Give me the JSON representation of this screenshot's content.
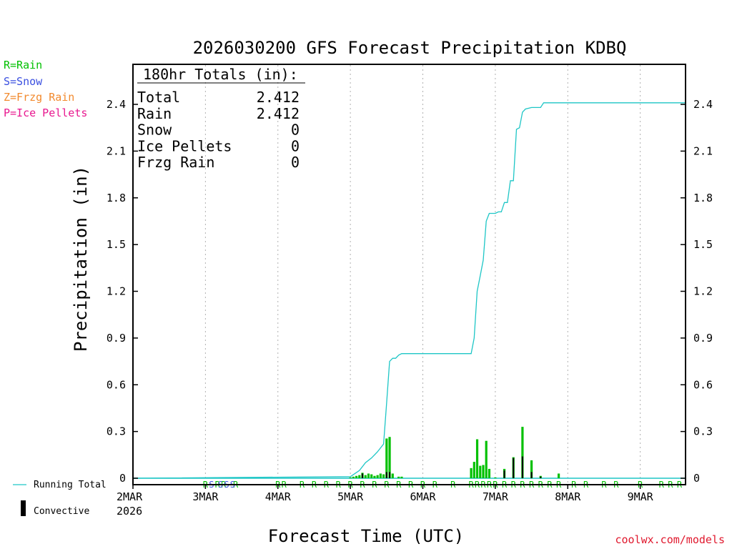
{
  "colors": {
    "rain": "#00c000",
    "snow": "#3a4fe0",
    "frzg_rain": "#f28a2e",
    "ice_pellets": "#e8188f",
    "running_total": "#1ec6c6",
    "convective": "#000000",
    "credit": "#e0182d"
  },
  "legend_left": [
    {
      "label": "R=Rain",
      "color_key": "rain"
    },
    {
      "label": "S=Snow",
      "color_key": "snow"
    },
    {
      "label": "Z=Frzg Rain",
      "color_key": "frzg_rain"
    },
    {
      "label": "P=Ice Pellets",
      "color_key": "ice_pellets"
    }
  ],
  "totals_box": {
    "header": "180hr Totals (in):",
    "rows": [
      {
        "label": "Total",
        "value": "2.412"
      },
      {
        "label": "Rain",
        "value": "2.412"
      },
      {
        "label": "Snow",
        "value": "0"
      },
      {
        "label": "Ice Pellets",
        "value": "0"
      },
      {
        "label": "Frzg Rain",
        "value": "0"
      }
    ]
  },
  "bottom_legend": {
    "running_total": "Running Total",
    "convective": "Convective"
  },
  "credit": "coolwx.com/models",
  "chart_data": {
    "type": "bar",
    "title": "2026030200 GFS Forecast Precipitation KDBQ",
    "xlabel": "Forecast Time (UTC)",
    "ylabel": "Precipitation (in)",
    "ylim": [
      0,
      2.4
    ],
    "xlim_hours": [
      0,
      183
    ],
    "yticks": [
      "0",
      "0.3",
      "0.6",
      "0.9",
      "1.2",
      "1.5",
      "1.8",
      "2.1",
      "2.4"
    ],
    "xticks": [
      {
        "hour": 0,
        "label": "2MAR",
        "sublabel": "2026"
      },
      {
        "hour": 24,
        "label": "3MAR"
      },
      {
        "hour": 48,
        "label": "4MAR"
      },
      {
        "hour": 72,
        "label": "5MAR"
      },
      {
        "hour": 96,
        "label": "6MAR"
      },
      {
        "hour": 120,
        "label": "7MAR"
      },
      {
        "hour": 144,
        "label": "8MAR"
      },
      {
        "hour": 168,
        "label": "9MAR"
      }
    ],
    "precip_bars_hourly": [
      [
        72,
        0.005
      ],
      [
        73,
        0.01
      ],
      [
        74,
        0.015
      ],
      [
        75,
        0.02
      ],
      [
        76,
        0.035
      ],
      [
        77,
        0.02
      ],
      [
        78,
        0.03
      ],
      [
        79,
        0.025
      ],
      [
        80,
        0.015
      ],
      [
        81,
        0.02
      ],
      [
        82,
        0.03
      ],
      [
        83,
        0.025
      ],
      [
        84,
        0.255
      ],
      [
        85,
        0.265
      ],
      [
        86,
        0.03
      ],
      [
        88,
        0.01
      ],
      [
        89,
        0.01
      ],
      [
        112,
        0.065
      ],
      [
        113,
        0.105
      ],
      [
        114,
        0.25
      ],
      [
        115,
        0.08
      ],
      [
        116,
        0.085
      ],
      [
        117,
        0.24
      ],
      [
        118,
        0.06
      ],
      [
        120,
        0.005
      ],
      [
        123,
        0.06
      ],
      [
        126,
        0.135
      ],
      [
        129,
        0.33
      ],
      [
        132,
        0.115
      ],
      [
        135,
        0.015
      ],
      [
        141,
        0.03
      ]
    ],
    "convective_bars_hourly": [
      [
        76,
        0.03
      ],
      [
        84,
        0.04
      ],
      [
        85,
        0.04
      ],
      [
        123,
        0.05
      ],
      [
        126,
        0.13
      ],
      [
        129,
        0.14
      ],
      [
        132,
        0.04
      ],
      [
        135,
        0.01
      ]
    ],
    "running_total": [
      [
        0,
        0
      ],
      [
        72,
        0.01
      ],
      [
        75,
        0.05
      ],
      [
        77,
        0.1
      ],
      [
        79,
        0.13
      ],
      [
        81,
        0.17
      ],
      [
        83,
        0.22
      ],
      [
        84,
        0.48
      ],
      [
        85,
        0.75
      ],
      [
        86,
        0.77
      ],
      [
        87,
        0.77
      ],
      [
        88,
        0.79
      ],
      [
        89,
        0.8
      ],
      [
        90,
        0.8
      ],
      [
        112,
        0.8
      ],
      [
        113,
        0.9
      ],
      [
        114,
        1.2
      ],
      [
        115,
        1.3
      ],
      [
        116,
        1.4
      ],
      [
        117,
        1.65
      ],
      [
        118,
        1.7
      ],
      [
        120,
        1.7
      ],
      [
        121,
        1.71
      ],
      [
        122,
        1.71
      ],
      [
        123,
        1.77
      ],
      [
        124,
        1.77
      ],
      [
        125,
        1.91
      ],
      [
        126,
        1.91
      ],
      [
        127,
        2.24
      ],
      [
        128,
        2.25
      ],
      [
        129,
        2.35
      ],
      [
        130,
        2.37
      ],
      [
        132,
        2.38
      ],
      [
        135,
        2.38
      ],
      [
        136,
        2.41
      ],
      [
        183,
        2.41
      ]
    ],
    "ptype_markers": {
      "letter": "R",
      "hours": [
        24,
        28,
        30,
        34,
        48,
        50,
        56,
        60,
        64,
        68,
        72,
        76,
        80,
        84,
        88,
        92,
        96,
        100,
        106,
        112,
        114,
        116,
        118,
        120,
        123,
        126,
        129,
        132,
        135,
        138,
        141,
        146,
        150,
        156,
        160,
        168,
        175,
        178,
        181
      ]
    },
    "snow_markers": {
      "letter": "S",
      "hours": [
        26,
        29,
        31,
        33
      ]
    }
  }
}
